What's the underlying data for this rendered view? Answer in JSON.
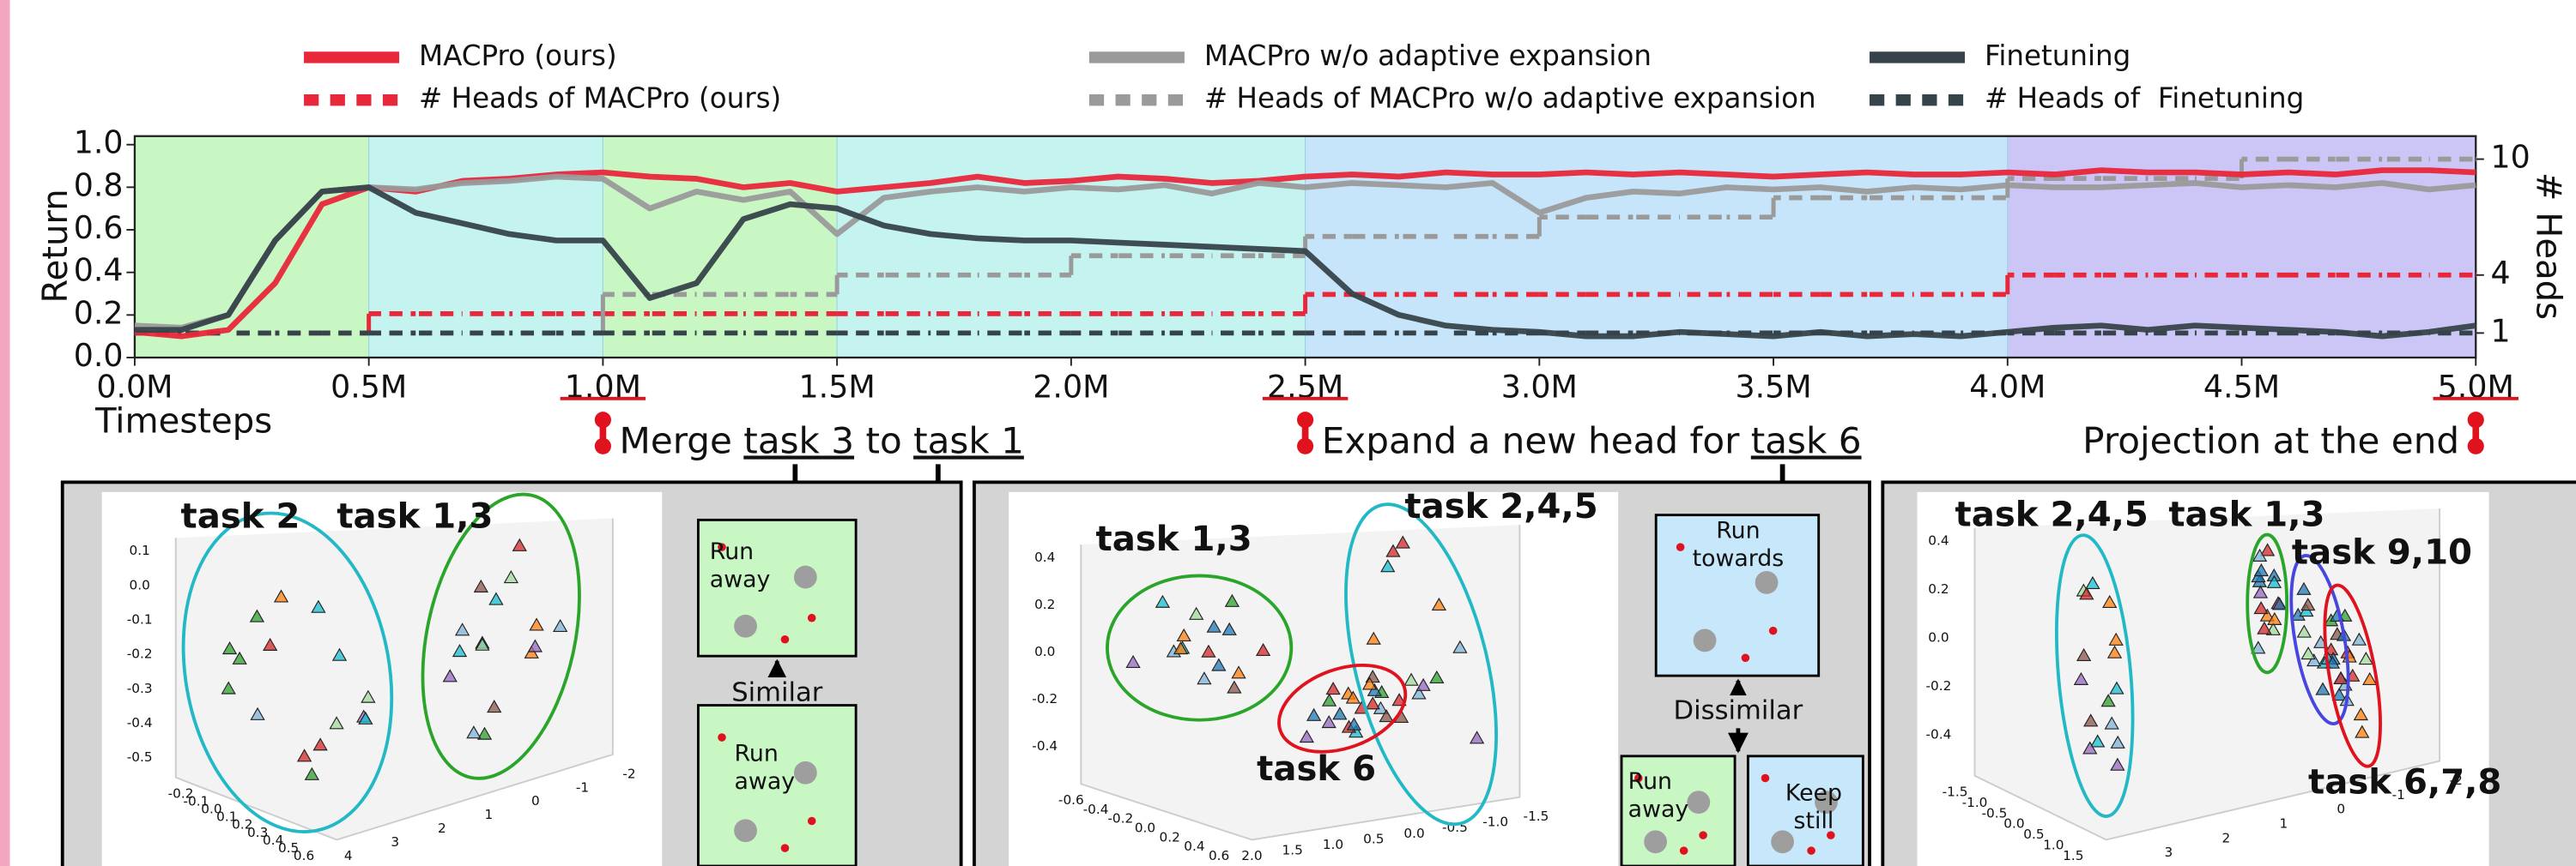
{
  "chart_data": {
    "type": "line",
    "xlabel": "Timesteps",
    "ylabel": "Return",
    "y2label": "# Heads",
    "x": [
      0,
      0.1,
      0.2,
      0.3,
      0.4,
      0.5,
      0.6,
      0.7,
      0.8,
      0.9,
      1.0,
      1.1,
      1.2,
      1.3,
      1.4,
      1.5,
      1.6,
      1.7,
      1.8,
      1.9,
      2.0,
      2.1,
      2.2,
      2.3,
      2.4,
      2.5,
      2.6,
      2.7,
      2.8,
      2.9,
      3.0,
      3.1,
      3.2,
      3.3,
      3.4,
      3.5,
      3.6,
      3.7,
      3.8,
      3.9,
      4.0,
      4.1,
      4.2,
      4.3,
      4.4,
      4.5,
      4.6,
      4.7,
      4.8,
      4.9,
      5.0
    ],
    "xlim": [
      0,
      5
    ],
    "xticks": [
      {
        "value": 0,
        "label": "0.0M"
      },
      {
        "value": 0.5,
        "label": "0.5M"
      },
      {
        "value": 1.0,
        "label": "1.0M"
      },
      {
        "value": 1.5,
        "label": "1.5M"
      },
      {
        "value": 2.0,
        "label": "2.0M"
      },
      {
        "value": 2.5,
        "label": "2.5M"
      },
      {
        "value": 3.0,
        "label": "3.0M"
      },
      {
        "value": 3.5,
        "label": "3.5M"
      },
      {
        "value": 4.0,
        "label": "4.0M"
      },
      {
        "value": 4.5,
        "label": "4.5M"
      },
      {
        "value": 5.0,
        "label": "5.0M"
      }
    ],
    "ylim": [
      0,
      1.04
    ],
    "yticks": [
      {
        "value": 0,
        "label": "0.0"
      },
      0.2,
      0.4,
      0.6,
      0.8,
      {
        "value": 1.0,
        "label": "1.0"
      }
    ],
    "y2lim": [
      -0.27,
      11.19
    ],
    "y2ticks": [
      1,
      4,
      10
    ],
    "legend": "top",
    "regions": [
      {
        "start": 0,
        "end": 0.5,
        "color": "#c8f7c4"
      },
      {
        "start": 0.5,
        "end": 1.0,
        "color": "#c4f3f0"
      },
      {
        "start": 1.0,
        "end": 1.5,
        "color": "#c8f7c4"
      },
      {
        "start": 1.5,
        "end": 2.5,
        "color": "#c4f3f0"
      },
      {
        "start": 2.5,
        "end": 4.0,
        "color": "#c7e5fa"
      },
      {
        "start": 4.0,
        "end": 5.0,
        "color": "#cbc6f6"
      }
    ],
    "series": [
      {
        "name": "MACPro (ours)",
        "color": "#e8273a",
        "style": "solid",
        "values": [
          0.12,
          0.1,
          0.13,
          0.35,
          0.72,
          0.8,
          0.78,
          0.83,
          0.84,
          0.86,
          0.87,
          0.85,
          0.84,
          0.8,
          0.82,
          0.78,
          0.8,
          0.82,
          0.85,
          0.82,
          0.83,
          0.85,
          0.84,
          0.82,
          0.83,
          0.85,
          0.86,
          0.85,
          0.87,
          0.86,
          0.86,
          0.87,
          0.86,
          0.87,
          0.86,
          0.85,
          0.86,
          0.87,
          0.86,
          0.86,
          0.87,
          0.86,
          0.88,
          0.87,
          0.87,
          0.86,
          0.87,
          0.86,
          0.88,
          0.88,
          0.87
        ]
      },
      {
        "name": "# Heads of MACPro (ours)",
        "color": "#e8273a",
        "style": "dashed",
        "axis": "y2",
        "values": [
          1,
          1,
          1,
          1,
          1,
          2,
          2,
          2,
          2,
          2,
          2,
          2,
          2,
          2,
          2,
          2,
          2,
          2,
          2,
          2,
          2,
          2,
          2,
          2,
          2,
          3,
          3,
          3,
          3,
          3,
          3,
          3,
          3,
          3,
          3,
          3,
          3,
          3,
          3,
          3,
          4,
          4,
          4,
          4,
          4,
          4,
          4,
          4,
          4,
          4,
          4
        ]
      },
      {
        "name": "MACPro w/o adaptive expansion",
        "color": "#9a9a9a",
        "style": "solid",
        "values": [
          0.15,
          0.14,
          0.2,
          0.55,
          0.78,
          0.8,
          0.79,
          0.82,
          0.83,
          0.85,
          0.84,
          0.7,
          0.78,
          0.74,
          0.78,
          0.58,
          0.75,
          0.78,
          0.8,
          0.78,
          0.8,
          0.79,
          0.81,
          0.77,
          0.82,
          0.8,
          0.82,
          0.81,
          0.8,
          0.82,
          0.68,
          0.75,
          0.78,
          0.77,
          0.8,
          0.79,
          0.8,
          0.78,
          0.8,
          0.79,
          0.81,
          0.8,
          0.8,
          0.81,
          0.82,
          0.8,
          0.81,
          0.8,
          0.82,
          0.79,
          0.81
        ]
      },
      {
        "name": "# Heads of MACPro w/o adaptive expansion",
        "color": "#9a9a9a",
        "style": "dashed",
        "axis": "y2",
        "values": [
          1,
          1,
          1,
          1,
          1,
          1,
          1,
          1,
          1,
          1,
          3,
          3,
          3,
          3,
          3,
          4,
          4,
          4,
          4,
          4,
          5,
          5,
          5,
          5,
          5,
          6,
          6,
          6,
          6,
          6,
          7,
          7,
          7,
          7,
          7,
          8,
          8,
          8,
          8,
          8,
          9,
          9,
          9,
          9,
          9,
          10,
          10,
          10,
          10,
          10,
          10
        ]
      },
      {
        "name": "Finetuning",
        "color": "#37434a",
        "style": "solid",
        "values": [
          0.13,
          0.13,
          0.2,
          0.55,
          0.78,
          0.8,
          0.68,
          0.63,
          0.58,
          0.55,
          0.55,
          0.28,
          0.35,
          0.65,
          0.72,
          0.7,
          0.62,
          0.58,
          0.56,
          0.55,
          0.55,
          0.54,
          0.53,
          0.52,
          0.51,
          0.5,
          0.3,
          0.2,
          0.15,
          0.13,
          0.12,
          0.1,
          0.1,
          0.12,
          0.11,
          0.1,
          0.12,
          0.1,
          0.11,
          0.1,
          0.12,
          0.14,
          0.15,
          0.13,
          0.15,
          0.14,
          0.13,
          0.12,
          0.1,
          0.12,
          0.15
        ]
      },
      {
        "name": "# Heads of  Finetuning",
        "color": "#37434a",
        "style": "dashed",
        "axis": "y2",
        "values": [
          1,
          1,
          1,
          1,
          1,
          1,
          1,
          1,
          1,
          1,
          1,
          1,
          1,
          1,
          1,
          1,
          1,
          1,
          1,
          1,
          1,
          1,
          1,
          1,
          1,
          1,
          1,
          1,
          1,
          1,
          1,
          1,
          1,
          1,
          1,
          1,
          1,
          1,
          1,
          1,
          1,
          1,
          1,
          1,
          1,
          1,
          1,
          1,
          1,
          1,
          1
        ]
      }
    ]
  },
  "annotations": [
    {
      "x": 1.0,
      "parts": [
        {
          "text": "Merge "
        },
        {
          "text": "task 3",
          "underline": true
        },
        {
          "text": " to "
        },
        {
          "text": "task 1",
          "underline": true
        }
      ]
    },
    {
      "x": 2.5,
      "parts": [
        {
          "text": "Expand a new head for "
        },
        {
          "text": "task 6",
          "underline": true
        }
      ]
    },
    {
      "x": 5.0,
      "parts": [
        {
          "text": "Projection at the end"
        }
      ]
    }
  ],
  "panels": [
    {
      "labels": [
        {
          "text": "task 2",
          "color": "#22b8c6"
        },
        {
          "text": "task 1,3",
          "color": "#2aa52a"
        }
      ],
      "yticks": [
        "0.1",
        "0.0",
        "-0.1",
        "-0.2",
        "-0.3",
        "-0.4",
        "-0.5"
      ],
      "xticks": [
        "-0.2",
        "-0.1",
        "0.0",
        "0.1",
        "0.2",
        "0.3",
        "0.4",
        "0.5",
        "0.6"
      ],
      "zticks": [
        "4",
        "3",
        "2",
        "1",
        "0",
        "-1",
        "-2"
      ],
      "diagram": {
        "relation": "Similar",
        "boxes": [
          {
            "lines": [
              "Run",
              "away"
            ],
            "color": "#c8f7c4"
          },
          {
            "lines": [
              "Run",
              "away"
            ],
            "color": "#c8f7c4"
          }
        ]
      }
    },
    {
      "labels": [
        {
          "text": "task 1,3",
          "color": "#2aa52a"
        },
        {
          "text": "task 2,4,5",
          "color": "#22b8c6"
        },
        {
          "text": "task 6",
          "color": "#e0121e"
        }
      ],
      "yticks": [
        "0.4",
        "0.2",
        "0.0",
        "-0.2",
        "-0.4"
      ],
      "xticks": [
        "-0.6",
        "-0.4",
        "-0.2",
        "0.0",
        "0.2",
        "0.4",
        "0.6"
      ],
      "zticks": [
        "2.0",
        "1.5",
        "1.0",
        "0.5",
        "0.0",
        "-0.5",
        "-1.0",
        "-1.5"
      ],
      "diagram": {
        "relation": "Dissimilar",
        "boxes": [
          {
            "lines": [
              "Run",
              "towards"
            ],
            "color": "#c7e8fb"
          },
          {
            "lines": [
              "Run",
              "away"
            ],
            "color": "#c8f7c4"
          },
          {
            "lines": [
              "Keep",
              "still"
            ],
            "color": "#c7e8fb"
          }
        ]
      }
    },
    {
      "labels": [
        {
          "text": "task 2,4,5",
          "color": "#22b8c6"
        },
        {
          "text": "task 1,3",
          "color": "#2aa52a"
        },
        {
          "text": "task 9,10",
          "color": "#4747e0"
        },
        {
          "text": "task 6,7,8",
          "color": "#e0121e"
        }
      ],
      "yticks": [
        "0.4",
        "0.2",
        "0.0",
        "-0.2",
        "-0.4"
      ],
      "xticks": [
        "-1.5",
        "-1.0",
        "-0.5",
        "0.0",
        "0.5",
        "1.0",
        "1.5"
      ],
      "zticks": [
        "3",
        "2",
        "1",
        "0",
        "-1",
        "-2"
      ]
    }
  ]
}
